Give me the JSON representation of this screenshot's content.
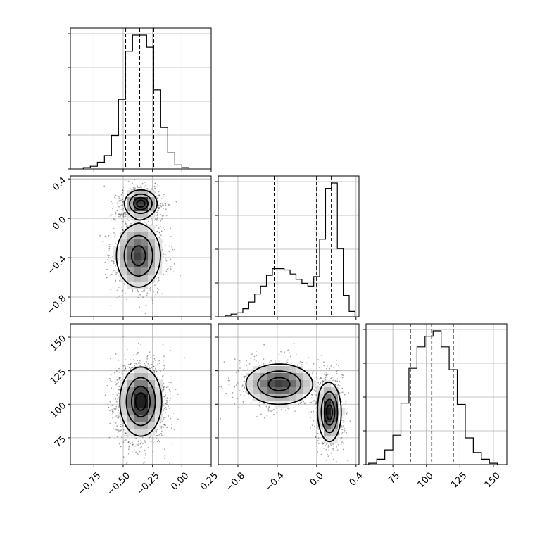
{
  "chart_data": {
    "type": "corner",
    "grid": true,
    "parameters": [
      {
        "name": "",
        "range": [
          -0.95,
          0.25
        ],
        "quantiles": [
          -0.48,
          -0.36,
          -0.24
        ]
      },
      {
        "name": "",
        "range": [
          -1.0,
          0.43
        ],
        "quantiles": [
          -0.43,
          0.0,
          0.15
        ]
      },
      {
        "name": "",
        "range": [
          55,
          160
        ],
        "quantiles": [
          88,
          104,
          120
        ]
      }
    ],
    "histograms": [
      {
        "param": 0,
        "bin_edges": [
          -0.84,
          -0.78,
          -0.72,
          -0.66,
          -0.6,
          -0.54,
          -0.48,
          -0.42,
          -0.36,
          -0.3,
          -0.24,
          -0.18,
          -0.12,
          -0.06,
          0.0,
          0.06
        ],
        "counts": [
          0.01,
          0.02,
          0.05,
          0.1,
          0.25,
          0.52,
          0.88,
          1.0,
          1.0,
          0.91,
          0.59,
          0.31,
          0.12,
          0.03,
          0.01
        ]
      },
      {
        "param": 1,
        "bin_edges": [
          -0.93,
          -0.87,
          -0.81,
          -0.75,
          -0.69,
          -0.63,
          -0.57,
          -0.51,
          -0.45,
          -0.39,
          -0.33,
          -0.27,
          -0.21,
          -0.15,
          -0.09,
          -0.03,
          0.03,
          0.09,
          0.15,
          0.21,
          0.27,
          0.33,
          0.39
        ],
        "counts": [
          0.01,
          0.02,
          0.03,
          0.06,
          0.11,
          0.17,
          0.23,
          0.31,
          0.36,
          0.36,
          0.35,
          0.32,
          0.28,
          0.25,
          0.23,
          0.3,
          0.58,
          0.96,
          1.0,
          0.51,
          0.16,
          0.04
        ]
      },
      {
        "param": 2,
        "bin_edges": [
          57,
          63,
          69,
          75,
          81,
          87,
          93,
          99,
          105,
          111,
          117,
          123,
          129,
          135,
          141,
          147,
          153
        ],
        "counts": [
          0.01,
          0.04,
          0.11,
          0.22,
          0.46,
          0.72,
          0.88,
          0.96,
          1.0,
          0.88,
          0.71,
          0.45,
          0.2,
          0.09,
          0.04,
          0.01
        ]
      }
    ],
    "pairs": [
      {
        "x_param": 0,
        "y_param": 1,
        "modes": [
          {
            "mean": [
              -0.35,
              0.15
            ],
            "std": [
              0.07,
              0.07
            ],
            "weight": 0.55
          },
          {
            "mean": [
              -0.37,
              -0.38
            ],
            "std": [
              0.1,
              0.17
            ],
            "weight": 0.45
          }
        ]
      },
      {
        "x_param": 0,
        "y_param": 2,
        "modes": [
          {
            "mean": [
              -0.35,
              102
            ],
            "std": [
              0.09,
              13
            ],
            "weight": 1.0
          }
        ]
      },
      {
        "x_param": 1,
        "y_param": 2,
        "modes": [
          {
            "mean": [
              -0.38,
              115
            ],
            "std": [
              0.18,
              8
            ],
            "weight": 0.45
          },
          {
            "mean": [
              0.13,
              94
            ],
            "std": [
              0.06,
              11
            ],
            "weight": 0.55
          }
        ]
      }
    ],
    "x_ticks": [
      {
        "values": [
          -0.75,
          -0.5,
          -0.25,
          0.0,
          0.25
        ],
        "labels": [
          "−0.75",
          "−0.50",
          "−0.25",
          "0.00",
          "0.25"
        ]
      },
      {
        "values": [
          -0.8,
          -0.4,
          0.0,
          0.4
        ],
        "labels": [
          "−0.8",
          "−0.4",
          "0.0",
          "0.4"
        ]
      },
      {
        "values": [
          75,
          100,
          125,
          150
        ],
        "labels": [
          "75",
          "100",
          "125",
          "150"
        ]
      }
    ],
    "y_ticks": [
      {
        "values": [],
        "labels": []
      },
      {
        "values": [
          0.4,
          0.0,
          -0.4,
          -0.8
        ],
        "labels": [
          "0.4",
          "0.0",
          "−0.4",
          "−0.8"
        ]
      },
      {
        "values": [
          150,
          125,
          100,
          75
        ],
        "labels": [
          "150",
          "125",
          "100",
          "75"
        ]
      }
    ]
  }
}
